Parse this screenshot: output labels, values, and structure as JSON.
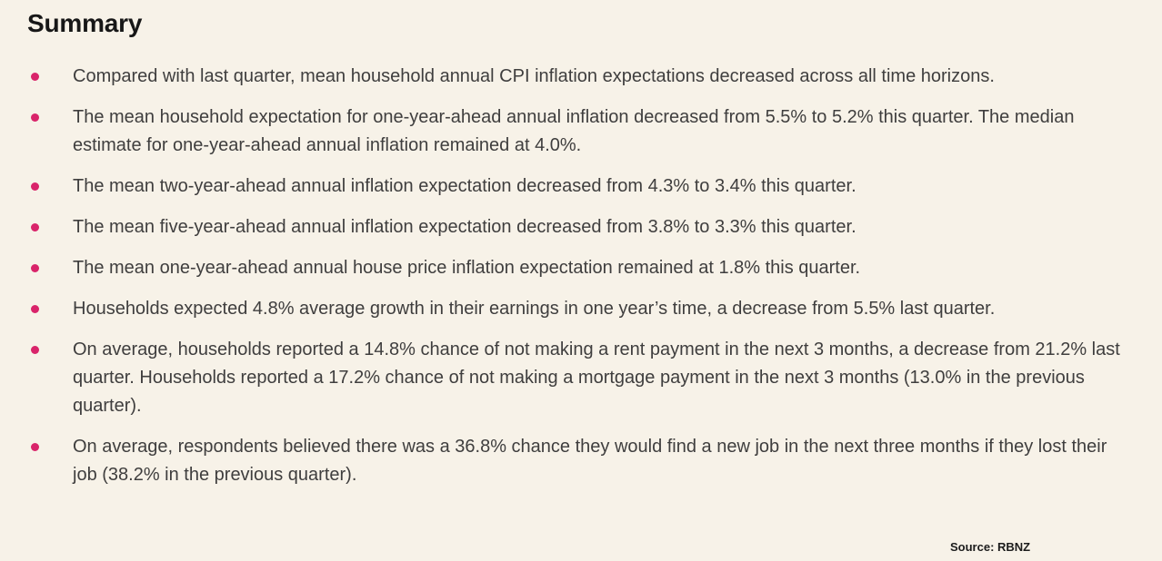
{
  "theme": {
    "background": "#f7f2e8",
    "bullet_color": "#d9246a",
    "text_color": "#3f3e3e",
    "heading_color": "#171717"
  },
  "summary": {
    "title": "Summary",
    "bullets": [
      "Compared with last quarter, mean household annual CPI inflation expectations decreased across all time horizons.",
      "The mean household expectation for one-year-ahead annual inflation decreased from 5.5% to 5.2% this quarter. The median estimate for one-year-ahead annual inflation remained at 4.0%.",
      "The mean two-year-ahead annual inflation expectation decreased from 4.3% to 3.4% this quarter.",
      "The mean five-year-ahead annual inflation expectation decreased from 3.8% to 3.3% this quarter.",
      "The mean one-year-ahead annual house price inflation expectation remained at 1.8% this quarter.",
      "Households expected 4.8% average growth in their earnings in one year’s time, a decrease from 5.5% last quarter.",
      "On average, households reported a 14.8% chance of not making a rent payment in the next 3 months, a decrease from 21.2% last quarter. Households reported a 17.2% chance of not making a mortgage payment in the next 3 months (13.0% in the previous quarter).",
      "On average, respondents believed there was a 36.8% chance they would find a new job in the next three months if they lost their job (38.2% in the previous quarter)."
    ],
    "source": "Source: RBNZ"
  }
}
